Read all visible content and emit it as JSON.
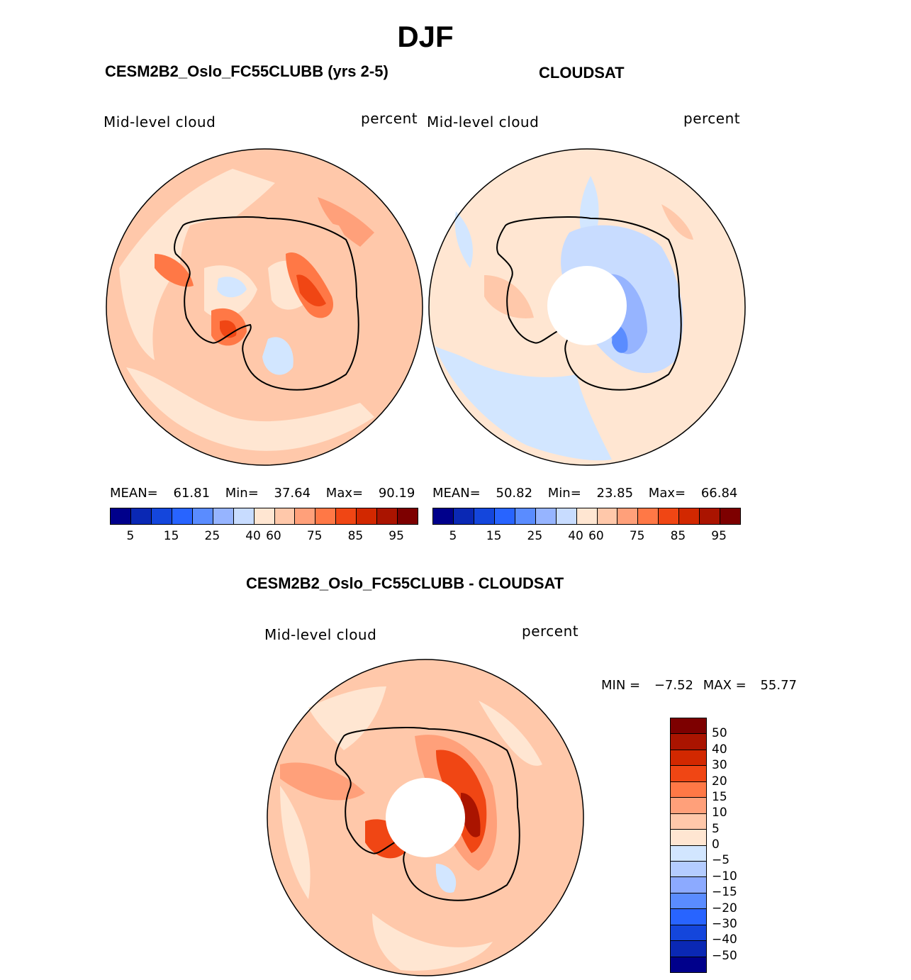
{
  "title": "DJF",
  "panels": [
    {
      "title": "CESM2B2_Oslo_FC55CLUBB (yrs 2-5)",
      "variable": "Mid-level cloud",
      "units": "percent",
      "stats": {
        "mean_label": "MEAN=",
        "mean": "61.81",
        "min_label": "Min=",
        "min": "37.64",
        "max_label": "Max=",
        "max": "90.19"
      }
    },
    {
      "title": "CLOUDSAT",
      "variable": "Mid-level cloud",
      "units": "percent",
      "stats": {
        "mean_label": "MEAN=",
        "mean": "50.82",
        "min_label": "Min=",
        "min": "23.85",
        "max_label": "Max=",
        "max": "66.84"
      }
    },
    {
      "title": "CESM2B2_Oslo_FC55CLUBB - CLOUDSAT",
      "variable": "Mid-level cloud",
      "units": "percent",
      "stats": {
        "min_label": "MIN =",
        "min": "−7.52",
        "max_label": "MAX =",
        "max": "55.77"
      }
    }
  ],
  "colorbar_top": {
    "colors": [
      "#00008b",
      "#0a28b4",
      "#1446dc",
      "#2864ff",
      "#5a8cff",
      "#96b4ff",
      "#c8dcff",
      "#ffe6d2",
      "#ffc8aa",
      "#ffa07a",
      "#ff7846",
      "#f04614",
      "#d22800",
      "#aa1400",
      "#7d0000"
    ],
    "ticks": [
      "5",
      "15",
      "25",
      "40",
      "60",
      "75",
      "85",
      "95"
    ]
  },
  "colorbar_diff": {
    "colors": [
      "#7d0000",
      "#aa1400",
      "#d22800",
      "#f04614",
      "#ff7846",
      "#ffa07a",
      "#ffc8aa",
      "#ffe6d2",
      "#d2e6ff",
      "#b4ccff",
      "#8caaff",
      "#5a8cff",
      "#2864ff",
      "#1446dc",
      "#0a28b4",
      "#00008b"
    ],
    "labels": [
      "50",
      "40",
      "30",
      "20",
      "15",
      "10",
      "5",
      "0",
      "−5",
      "−10",
      "−15",
      "−20",
      "−30",
      "−40",
      "−50"
    ]
  }
}
